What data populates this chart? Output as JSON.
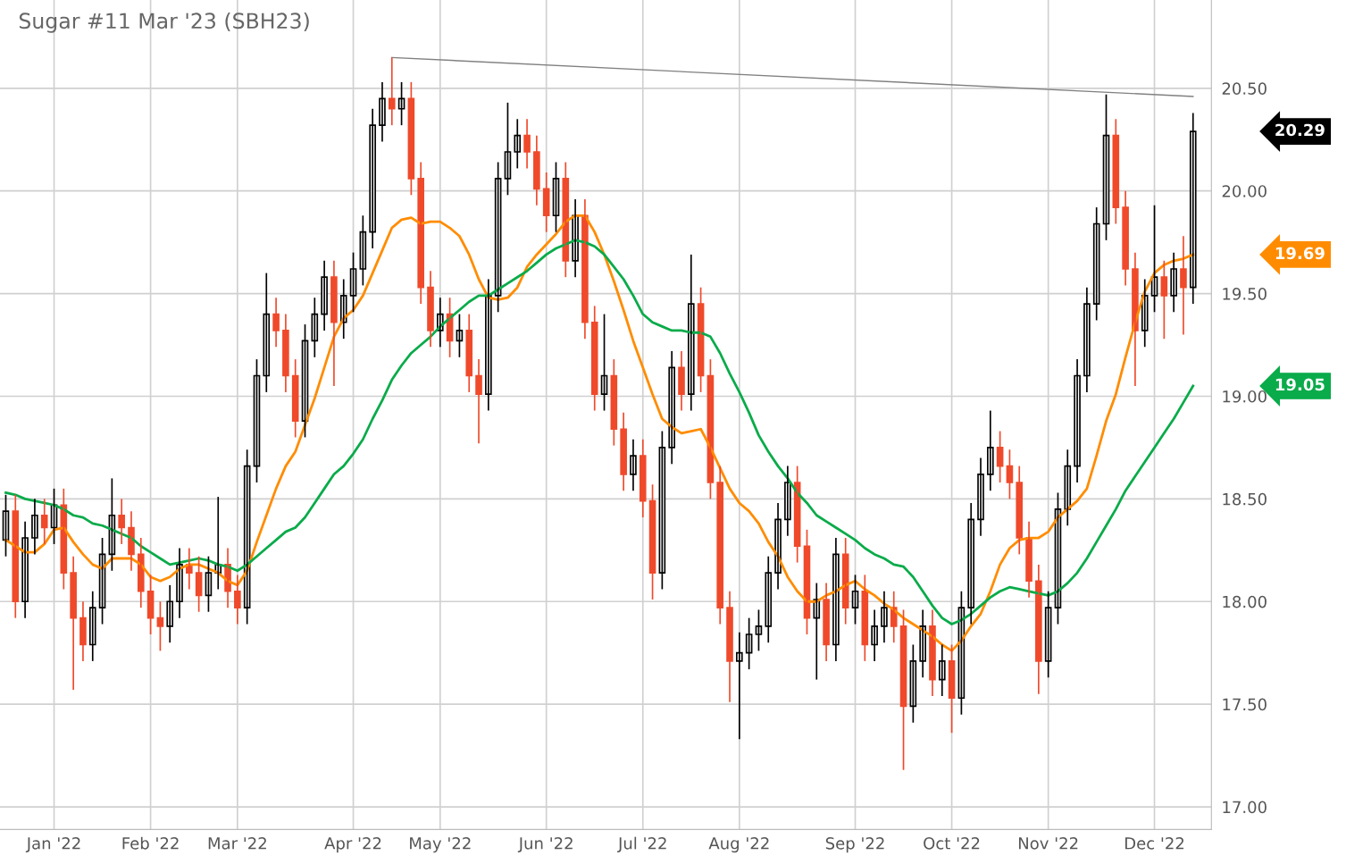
{
  "chart_data": {
    "type": "candlestick",
    "title": "Sugar #11 Mar '23 (SBH23)",
    "categories": [
      null,
      null,
      null,
      null,
      null,
      "Jan '22",
      null,
      null,
      null,
      null,
      null,
      null,
      null,
      null,
      null,
      "Feb '22",
      null,
      null,
      null,
      null,
      null,
      null,
      null,
      null,
      "Mar '22",
      null,
      null,
      null,
      null,
      null,
      null,
      null,
      null,
      null,
      null,
      null,
      "Apr '22",
      null,
      null,
      null,
      null,
      null,
      null,
      null,
      null,
      "May '22",
      null,
      null,
      null,
      null,
      null,
      null,
      null,
      null,
      null,
      null,
      "Jun '22",
      null,
      null,
      null,
      null,
      null,
      null,
      null,
      null,
      null,
      "Jul '22",
      null,
      null,
      null,
      null,
      null,
      null,
      null,
      null,
      null,
      "Aug '22",
      null,
      null,
      null,
      null,
      null,
      null,
      null,
      null,
      null,
      null,
      null,
      "Sep '22",
      null,
      null,
      null,
      null,
      null,
      null,
      null,
      null,
      null,
      "Oct '22",
      null,
      null,
      null,
      null,
      null,
      null,
      null,
      null,
      null,
      "Nov '22",
      null,
      null,
      null,
      null,
      null,
      null,
      null,
      null,
      null,
      null,
      "Dec '22",
      null,
      null,
      null,
      null
    ],
    "ohlc": [
      [
        18.3,
        18.52,
        18.22,
        18.44
      ],
      [
        18.44,
        18.52,
        17.92,
        18.0
      ],
      [
        18.0,
        18.39,
        17.92,
        18.31
      ],
      [
        18.31,
        18.5,
        18.23,
        18.42
      ],
      [
        18.42,
        18.5,
        18.28,
        18.36
      ],
      [
        18.36,
        18.55,
        18.28,
        18.47
      ],
      [
        18.47,
        18.55,
        18.06,
        18.14
      ],
      [
        18.14,
        18.22,
        17.57,
        17.92
      ],
      [
        17.92,
        18.0,
        17.71,
        17.79
      ],
      [
        17.79,
        18.05,
        17.71,
        17.97
      ],
      [
        17.97,
        18.31,
        17.89,
        18.23
      ],
      [
        18.23,
        18.6,
        18.15,
        18.42
      ],
      [
        18.42,
        18.5,
        18.28,
        18.36
      ],
      [
        18.36,
        18.44,
        18.15,
        18.23
      ],
      [
        18.23,
        18.31,
        17.97,
        18.05
      ],
      [
        18.05,
        18.13,
        17.84,
        17.92
      ],
      [
        17.92,
        18.0,
        17.76,
        17.88
      ],
      [
        17.88,
        18.08,
        17.8,
        18.0
      ],
      [
        18.0,
        18.26,
        17.92,
        18.18
      ],
      [
        18.18,
        18.26,
        18.06,
        18.14
      ],
      [
        18.14,
        18.22,
        17.95,
        18.03
      ],
      [
        18.03,
        18.22,
        17.95,
        18.14
      ],
      [
        18.14,
        18.51,
        18.06,
        18.18
      ],
      [
        18.18,
        18.26,
        17.97,
        18.05
      ],
      [
        18.05,
        18.13,
        17.89,
        17.97
      ],
      [
        17.97,
        18.74,
        17.89,
        18.66
      ],
      [
        18.66,
        19.18,
        18.58,
        19.1
      ],
      [
        19.1,
        19.6,
        19.02,
        19.4
      ],
      [
        19.4,
        19.48,
        19.24,
        19.32
      ],
      [
        19.32,
        19.4,
        19.02,
        19.1
      ],
      [
        19.1,
        19.18,
        18.8,
        18.88
      ],
      [
        18.88,
        19.35,
        18.8,
        19.27
      ],
      [
        19.27,
        19.48,
        19.19,
        19.4
      ],
      [
        19.4,
        19.66,
        19.32,
        19.58
      ],
      [
        19.58,
        19.66,
        19.05,
        19.36
      ],
      [
        19.36,
        19.57,
        19.28,
        19.49
      ],
      [
        19.49,
        19.7,
        19.41,
        19.62
      ],
      [
        19.62,
        19.88,
        19.54,
        19.8
      ],
      [
        19.8,
        20.4,
        19.72,
        20.32
      ],
      [
        20.32,
        20.53,
        20.24,
        20.45
      ],
      [
        20.45,
        20.65,
        20.32,
        20.4
      ],
      [
        20.4,
        20.53,
        20.32,
        20.45
      ],
      [
        20.45,
        20.53,
        19.98,
        20.06
      ],
      [
        20.06,
        20.14,
        19.45,
        19.53
      ],
      [
        19.53,
        19.61,
        19.24,
        19.32
      ],
      [
        19.32,
        19.48,
        19.24,
        19.4
      ],
      [
        19.4,
        19.48,
        19.19,
        19.27
      ],
      [
        19.27,
        19.4,
        19.19,
        19.32
      ],
      [
        19.32,
        19.4,
        19.02,
        19.1
      ],
      [
        19.1,
        19.18,
        18.77,
        19.01
      ],
      [
        19.01,
        19.57,
        18.93,
        19.49
      ],
      [
        19.49,
        20.14,
        19.41,
        20.06
      ],
      [
        20.06,
        20.43,
        19.98,
        20.19
      ],
      [
        20.19,
        20.35,
        20.11,
        20.27
      ],
      [
        20.27,
        20.35,
        20.11,
        20.19
      ],
      [
        20.19,
        20.27,
        19.93,
        20.01
      ],
      [
        20.01,
        20.09,
        19.8,
        19.88
      ],
      [
        19.88,
        20.14,
        19.8,
        20.06
      ],
      [
        20.06,
        20.14,
        19.58,
        19.66
      ],
      [
        19.66,
        19.96,
        19.58,
        19.88
      ],
      [
        19.88,
        19.96,
        19.28,
        19.36
      ],
      [
        19.36,
        19.44,
        18.93,
        19.01
      ],
      [
        19.01,
        19.4,
        18.93,
        19.1
      ],
      [
        19.1,
        19.18,
        18.76,
        18.84
      ],
      [
        18.84,
        18.92,
        18.54,
        18.62
      ],
      [
        18.62,
        18.79,
        18.54,
        18.71
      ],
      [
        18.71,
        18.79,
        18.41,
        18.49
      ],
      [
        18.49,
        18.57,
        18.01,
        18.14
      ],
      [
        18.14,
        18.83,
        18.06,
        18.75
      ],
      [
        18.75,
        19.22,
        18.67,
        19.14
      ],
      [
        19.14,
        19.22,
        18.93,
        19.01
      ],
      [
        19.01,
        19.69,
        18.93,
        19.45
      ],
      [
        19.45,
        19.53,
        19.02,
        19.1
      ],
      [
        19.1,
        19.18,
        18.5,
        18.58
      ],
      [
        18.58,
        18.66,
        17.89,
        17.97
      ],
      [
        17.97,
        18.05,
        17.51,
        17.71
      ],
      [
        17.71,
        17.85,
        17.33,
        17.75
      ],
      [
        17.75,
        17.92,
        17.67,
        17.84
      ],
      [
        17.84,
        17.96,
        17.76,
        17.88
      ],
      [
        17.88,
        18.22,
        17.8,
        18.14
      ],
      [
        18.14,
        18.48,
        18.06,
        18.4
      ],
      [
        18.4,
        18.66,
        18.32,
        18.58
      ],
      [
        18.58,
        18.66,
        18.19,
        18.27
      ],
      [
        18.27,
        18.35,
        17.84,
        17.92
      ],
      [
        17.92,
        18.09,
        17.62,
        18.01
      ],
      [
        18.01,
        18.09,
        17.71,
        17.79
      ],
      [
        17.79,
        18.31,
        17.71,
        18.23
      ],
      [
        18.23,
        18.31,
        17.89,
        17.97
      ],
      [
        17.97,
        18.13,
        17.89,
        18.05
      ],
      [
        18.05,
        18.13,
        17.71,
        17.79
      ],
      [
        17.79,
        17.96,
        17.71,
        17.88
      ],
      [
        17.88,
        18.05,
        17.8,
        17.97
      ],
      [
        17.97,
        18.05,
        17.8,
        17.88
      ],
      [
        17.88,
        17.96,
        17.18,
        17.49
      ],
      [
        17.49,
        17.79,
        17.41,
        17.71
      ],
      [
        17.71,
        17.96,
        17.63,
        17.88
      ],
      [
        17.88,
        17.96,
        17.54,
        17.62
      ],
      [
        17.62,
        17.79,
        17.54,
        17.71
      ],
      [
        17.71,
        17.79,
        17.36,
        17.53
      ],
      [
        17.53,
        18.05,
        17.45,
        17.97
      ],
      [
        17.97,
        18.48,
        17.89,
        18.4
      ],
      [
        18.4,
        18.7,
        18.32,
        18.62
      ],
      [
        18.62,
        18.93,
        18.54,
        18.75
      ],
      [
        18.75,
        18.83,
        18.58,
        18.66
      ],
      [
        18.66,
        18.74,
        18.5,
        18.58
      ],
      [
        18.58,
        18.66,
        18.23,
        18.31
      ],
      [
        18.31,
        18.39,
        18.02,
        18.1
      ],
      [
        18.1,
        18.18,
        17.55,
        17.71
      ],
      [
        17.71,
        18.05,
        17.63,
        17.97
      ],
      [
        17.97,
        18.53,
        17.89,
        18.45
      ],
      [
        18.45,
        18.74,
        18.37,
        18.66
      ],
      [
        18.66,
        19.18,
        18.58,
        19.1
      ],
      [
        19.1,
        19.53,
        19.02,
        19.45
      ],
      [
        19.45,
        19.92,
        19.37,
        19.84
      ],
      [
        19.84,
        20.47,
        19.76,
        20.27
      ],
      [
        20.27,
        20.35,
        19.84,
        19.92
      ],
      [
        19.92,
        20.0,
        19.54,
        19.62
      ],
      [
        19.62,
        19.7,
        19.05,
        19.32
      ],
      [
        19.32,
        19.57,
        19.24,
        19.49
      ],
      [
        19.49,
        19.93,
        19.41,
        19.58
      ],
      [
        19.58,
        19.66,
        19.28,
        19.49
      ],
      [
        19.49,
        19.7,
        19.41,
        19.62
      ],
      [
        19.62,
        19.78,
        19.3,
        19.53
      ],
      [
        19.53,
        20.38,
        19.45,
        20.29
      ]
    ],
    "colors": [
      "#000000",
      "#ef4a2b",
      "#000000",
      "#000000",
      "#ef4a2b",
      "#000000",
      "#ef4a2b",
      "#ef4a2b",
      "#ef4a2b",
      "#000000",
      "#000000",
      "#000000",
      "#ef4a2b",
      "#ef4a2b",
      "#ef4a2b",
      "#ef4a2b",
      "#ef4a2b",
      "#000000",
      "#000000",
      "#ef4a2b",
      "#ef4a2b",
      "#000000",
      "#000000",
      "#ef4a2b",
      "#ef4a2b",
      "#000000",
      "#000000",
      "#000000",
      "#ef4a2b",
      "#ef4a2b",
      "#ef4a2b",
      "#000000",
      "#000000",
      "#000000",
      "#ef4a2b",
      "#000000",
      "#000000",
      "#000000",
      "#000000",
      "#000000",
      "#ef4a2b",
      "#000000",
      "#ef4a2b",
      "#ef4a2b",
      "#ef4a2b",
      "#000000",
      "#ef4a2b",
      "#000000",
      "#ef4a2b",
      "#ef4a2b",
      "#000000",
      "#000000",
      "#000000",
      "#000000",
      "#ef4a2b",
      "#ef4a2b",
      "#ef4a2b",
      "#000000",
      "#ef4a2b",
      "#000000",
      "#ef4a2b",
      "#ef4a2b",
      "#000000",
      "#ef4a2b",
      "#ef4a2b",
      "#000000",
      "#ef4a2b",
      "#ef4a2b",
      "#000000",
      "#000000",
      "#ef4a2b",
      "#000000",
      "#ef4a2b",
      "#ef4a2b",
      "#ef4a2b",
      "#ef4a2b",
      "#000000",
      "#000000",
      "#000000",
      "#000000",
      "#000000",
      "#000000",
      "#ef4a2b",
      "#ef4a2b",
      "#000000",
      "#ef4a2b",
      "#000000",
      "#ef4a2b",
      "#000000",
      "#ef4a2b",
      "#000000",
      "#000000",
      "#ef4a2b",
      "#ef4a2b",
      "#000000",
      "#000000",
      "#ef4a2b",
      "#000000",
      "#ef4a2b",
      "#000000",
      "#000000",
      "#000000",
      "#000000",
      "#ef4a2b",
      "#ef4a2b",
      "#ef4a2b",
      "#ef4a2b",
      "#ef4a2b",
      "#000000",
      "#000000",
      "#000000",
      "#000000",
      "#000000",
      "#000000",
      "#000000",
      "#ef4a2b",
      "#ef4a2b",
      "#ef4a2b",
      "#000000",
      "#000000",
      "#ef4a2b",
      "#000000",
      "#ef4a2b",
      "#000000"
    ],
    "series": [
      {
        "type": "line",
        "color": "#ff8c00",
        "values": [
          18.3,
          18.27,
          18.24,
          18.24,
          18.28,
          18.35,
          18.36,
          18.29,
          18.23,
          18.18,
          18.16,
          18.21,
          18.21,
          18.21,
          18.18,
          18.12,
          18.1,
          18.12,
          18.16,
          18.18,
          18.18,
          18.16,
          18.14,
          18.1,
          18.08,
          18.15,
          18.29,
          18.42,
          18.55,
          18.66,
          18.73,
          18.86,
          18.99,
          19.14,
          19.29,
          19.38,
          19.42,
          19.49,
          19.6,
          19.71,
          19.82,
          19.86,
          19.87,
          19.84,
          19.85,
          19.85,
          19.82,
          19.78,
          19.69,
          19.57,
          19.48,
          19.47,
          19.48,
          19.53,
          19.63,
          19.69,
          19.74,
          19.79,
          19.85,
          19.88,
          19.88,
          19.8,
          19.69,
          19.56,
          19.42,
          19.27,
          19.14,
          19.01,
          18.89,
          18.85,
          18.82,
          18.83,
          18.84,
          18.75,
          18.65,
          18.55,
          18.48,
          18.44,
          18.38,
          18.29,
          18.22,
          18.12,
          18.05,
          18.0,
          18.0,
          18.03,
          18.05,
          18.08,
          18.1,
          18.06,
          18.03,
          17.99,
          17.96,
          17.92,
          17.89,
          17.86,
          17.83,
          17.79,
          17.76,
          17.81,
          17.88,
          17.94,
          18.05,
          18.18,
          18.26,
          18.3,
          18.31,
          18.31,
          18.34,
          18.41,
          18.45,
          18.49,
          18.55,
          18.71,
          18.88,
          19.01,
          19.19,
          19.36,
          19.51,
          19.6,
          19.64,
          19.66,
          19.67,
          19.69
        ]
      },
      {
        "type": "line",
        "color": "#0aab4a",
        "values": [
          18.53,
          18.52,
          18.5,
          18.49,
          18.48,
          18.47,
          18.45,
          18.42,
          18.41,
          18.38,
          18.37,
          18.35,
          18.33,
          18.31,
          18.27,
          18.24,
          18.21,
          18.18,
          18.19,
          18.2,
          18.21,
          18.2,
          18.18,
          18.17,
          18.15,
          18.18,
          18.22,
          18.26,
          18.3,
          18.34,
          18.36,
          18.41,
          18.48,
          18.55,
          18.62,
          18.66,
          18.72,
          18.79,
          18.89,
          18.98,
          19.08,
          19.15,
          19.21,
          19.25,
          19.29,
          19.34,
          19.38,
          19.42,
          19.46,
          19.49,
          19.49,
          19.52,
          19.55,
          19.58,
          19.61,
          19.65,
          19.69,
          19.72,
          19.74,
          19.76,
          19.75,
          19.73,
          19.69,
          19.63,
          19.57,
          19.49,
          19.4,
          19.36,
          19.34,
          19.32,
          19.32,
          19.31,
          19.31,
          19.29,
          19.21,
          19.11,
          19.02,
          18.92,
          18.81,
          18.73,
          18.66,
          18.6,
          18.53,
          18.48,
          18.42,
          18.39,
          18.36,
          18.33,
          18.3,
          18.26,
          18.23,
          18.21,
          18.18,
          18.17,
          18.12,
          18.05,
          17.98,
          17.92,
          17.89,
          17.91,
          17.94,
          17.98,
          18.02,
          18.05,
          18.07,
          18.06,
          18.05,
          18.04,
          18.03,
          18.05,
          18.09,
          18.14,
          18.21,
          18.29,
          18.37,
          18.45,
          18.54,
          18.61,
          18.68,
          18.75,
          18.82,
          18.89,
          18.97,
          19.05
        ]
      },
      {
        "type": "line",
        "color": "#808080",
        "values": [
          null,
          null,
          null,
          null,
          null,
          null,
          null,
          null,
          null,
          null,
          null,
          null,
          null,
          null,
          null,
          null,
          null,
          null,
          null,
          null,
          null,
          null,
          null,
          null,
          null,
          null,
          null,
          null,
          null,
          null,
          null,
          null,
          null,
          null,
          null,
          null,
          null,
          null,
          null,
          null,
          20.65,
          null,
          null,
          null,
          null,
          null,
          null,
          null,
          null,
          null,
          null,
          null,
          null,
          null,
          null,
          null,
          null,
          null,
          null,
          null,
          null,
          null,
          null,
          null,
          null,
          null,
          null,
          null,
          null,
          null,
          null,
          null,
          null,
          null,
          null,
          null,
          null,
          null,
          null,
          null,
          null,
          null,
          null,
          null,
          null,
          null,
          null,
          null,
          null,
          null,
          null,
          null,
          null,
          null,
          null,
          null,
          null,
          null,
          null,
          null,
          null,
          null,
          null,
          null,
          null,
          null,
          null,
          null,
          null,
          null,
          null,
          null,
          null,
          null,
          null,
          null,
          null,
          null,
          null,
          null,
          null,
          null,
          null,
          20.46
        ]
      }
    ],
    "ylim": [
      16.89,
      20.93
    ],
    "yticks": [
      {
        "value": 17.0,
        "label": "17.00"
      },
      {
        "value": 17.5,
        "label": "17.50"
      },
      {
        "value": 18.0,
        "label": "18.00"
      },
      {
        "value": 18.5,
        "label": "18.50"
      },
      {
        "value": 19.0,
        "label": "19.00"
      },
      {
        "value": 19.5,
        "label": "19.50"
      },
      {
        "value": 20.0,
        "label": "20.00"
      },
      {
        "value": 20.5,
        "label": "20.50"
      }
    ],
    "grid": true,
    "annotations": [
      "20.29",
      "19.69",
      "19.05"
    ]
  }
}
